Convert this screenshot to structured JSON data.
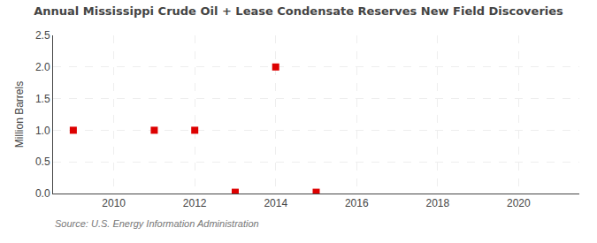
{
  "chart_data": {
    "type": "scatter",
    "title": "Annual Mississippi Crude Oil + Lease Condensate Reserves New Field Discoveries",
    "ylabel": "Million Barrels",
    "annotations": [
      "Source: U.S. Energy Information Administration"
    ],
    "x": [
      2009,
      2011,
      2012,
      2013,
      2014,
      2015
    ],
    "values": [
      1.0,
      1.0,
      1.0,
      0.02,
      2.0,
      0.02
    ],
    "color": "#dd0000",
    "marker": "square",
    "xlim": [
      2008.5,
      2021.5
    ],
    "ylim": [
      0.0,
      2.5
    ],
    "xticks": [
      2010,
      2012,
      2014,
      2016,
      2018,
      2020
    ],
    "yticks": [
      {
        "value": 0.0,
        "label": "0.0"
      },
      0.5,
      {
        "value": 1.0,
        "label": "1.0"
      },
      1.5,
      {
        "value": 2.0,
        "label": "2.0"
      },
      2.5
    ],
    "grid": true
  }
}
